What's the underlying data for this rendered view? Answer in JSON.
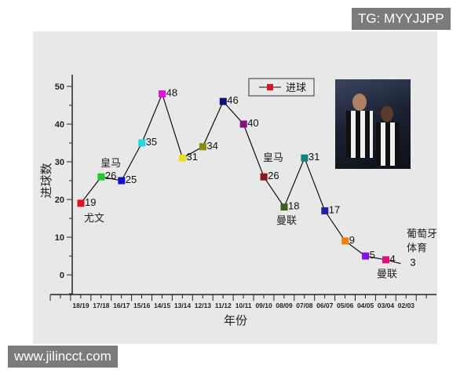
{
  "watermarks": {
    "top": "TG: MYYJJPP",
    "bottom": "www.jilincct.com"
  },
  "chart_data": {
    "type": "line",
    "xlabel": "年份",
    "ylabel": "进球数",
    "ylim": [
      -5,
      55
    ],
    "yticks": [
      0,
      10,
      20,
      30,
      40,
      50
    ],
    "categories": [
      "18/19",
      "17/18",
      "16/17",
      "15/16",
      "14/15",
      "13/14",
      "12/13",
      "11/12",
      "10/11",
      "09/10",
      "08/09",
      "07/08",
      "06/07",
      "05/06",
      "04/05",
      "03/04",
      "02/03"
    ],
    "series": [
      {
        "name": "进球",
        "values": [
          19,
          26,
          25,
          35,
          48,
          31,
          34,
          46,
          40,
          26,
          18,
          31,
          17,
          9,
          5,
          4,
          3
        ]
      }
    ],
    "marker_colors": [
      "#e0141e",
      "#22cc22",
      "#1010cc",
      "#22d8e0",
      "#e010e0",
      "#e8e020",
      "#8a8a10",
      "#10107a",
      "#801080",
      "#8b1a1a",
      "#3f5f1f",
      "#108080",
      "#2020a0",
      "#f08010",
      "#8010f0",
      "#e0107a",
      null
    ],
    "annotations": [
      {
        "text": "尤文",
        "category": "18/19"
      },
      {
        "text": "皇马",
        "category": "17/18"
      },
      {
        "text": "皇马",
        "category": "09/10"
      },
      {
        "text": "曼联",
        "category": "08/09"
      },
      {
        "text": "曼联",
        "category": "03/04"
      },
      {
        "text": "葡萄牙",
        "category": "02/03"
      },
      {
        "text": "体育",
        "category": "02/03"
      }
    ],
    "legend": {
      "label": "进球",
      "placement": "top-center"
    },
    "grid": false
  }
}
